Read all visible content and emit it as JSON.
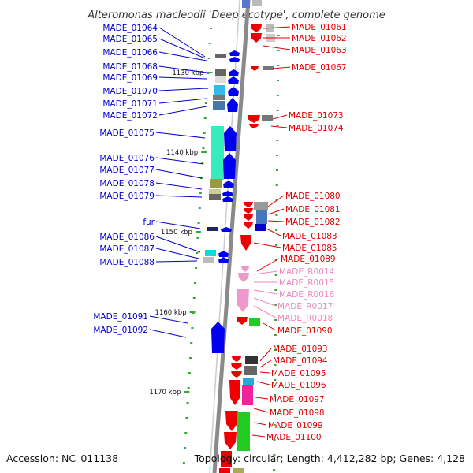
{
  "title": "Alteromonas macleodii 'Deep ecotype', complete genome",
  "accession_text": "Accession: NC_011138",
  "topology_text": "Topology: circular; Length: 4,412,282 bp; Genes: 4,128",
  "colors": {
    "left_label": "#0000cc",
    "right_label": "#dd0000",
    "rna_label": "#ee88bb",
    "backbone": "#888888",
    "tick": "#33aa33"
  },
  "ticks": [
    {
      "label": "1130 kbp",
      "pos": 1130
    },
    {
      "label": "1140 kbp",
      "pos": 1140
    },
    {
      "label": "1150 kbp",
      "pos": 1150
    },
    {
      "label": "1160 kbp",
      "pos": 1160
    },
    {
      "label": "1170 kbp",
      "pos": 1170
    }
  ],
  "left_labels": [
    "MADE_01064",
    "MADE_01065",
    "MADE_01066",
    "MADE_01068",
    "MADE_01069",
    "MADE_01070",
    "MADE_01071",
    "MADE_01072",
    "MADE_01075",
    "MADE_01076",
    "MADE_01077",
    "MADE_01078",
    "MADE_01079",
    "fur",
    "MADE_01086",
    "MADE_01087",
    "MADE_01088",
    "MADE_01091",
    "MADE_01092"
  ],
  "right_labels": [
    "MADE_01061",
    "MADE_01062",
    "MADE_01063",
    "MADE_01067",
    "MADE_01073",
    "MADE_01074",
    "MADE_01080",
    "MADE_01081",
    "MADE_01082",
    "MADE_01083",
    "MADE_01085",
    "MADE_01089",
    "MADE_R0014",
    "MADE_R0015",
    "MADE_R0016",
    "MADE_R0017",
    "MADE_R0018",
    "MADE_01090",
    "MADE_01093",
    "MADE_01094",
    "MADE_01095",
    "MADE_01096",
    "MADE_01097",
    "MADE_01098",
    "MADE_01099",
    "MADE_01100"
  ],
  "rna_labels": [
    "MADE_R0014",
    "MADE_R0015",
    "MADE_R0016",
    "MADE_R0017",
    "MADE_R0018"
  ]
}
